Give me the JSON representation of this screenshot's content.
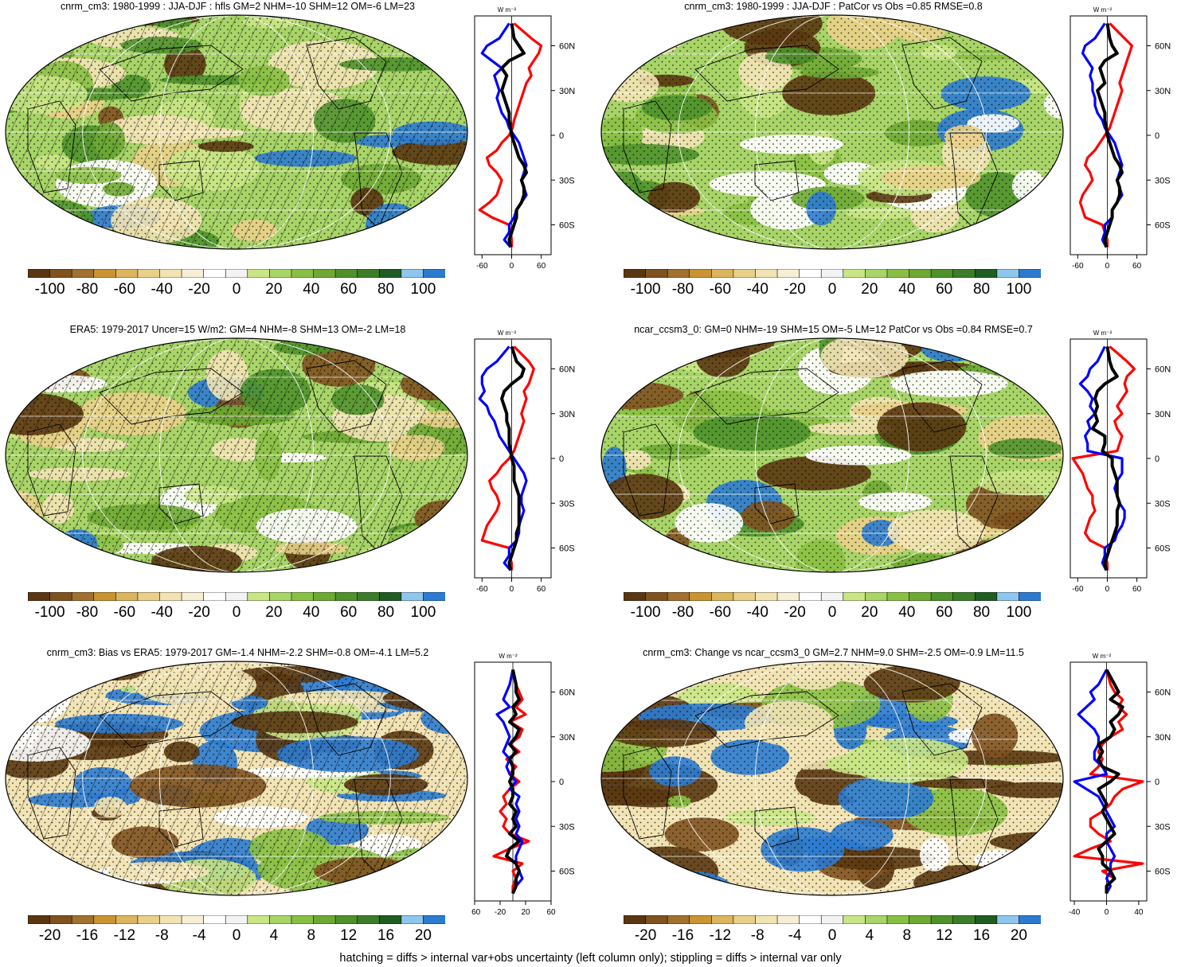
{
  "footer": "hatching = diffs > internal var+obs uncertainty (left column only); stippling = diffs > internal var only",
  "colors": {
    "scale": [
      "#5a3711",
      "#7f5220",
      "#a0712f",
      "#c99431",
      "#dcb55f",
      "#e9d089",
      "#f2e3b4",
      "#f7efd5",
      "#ffffff",
      "#f3f3f3",
      "#c9e585",
      "#a8d468",
      "#89c044",
      "#6ea934",
      "#4f922c",
      "#3c7d29",
      "#1f5d22",
      "#8fc6ee",
      "#2c7bd0"
    ],
    "profile_red": "#ff0000",
    "profile_blue": "#0000ff",
    "profile_black": "#000000"
  },
  "panels": [
    {
      "id": "p1",
      "title": "cnrm_cm3: 1980-1999 : JJA-DJF : hfls GM=2 NHM=-10 SHM=12 OM=-6 LM=23",
      "colorbar_ticks": [
        "-100",
        "-80",
        "-60",
        "-40",
        "-20",
        "0",
        "20",
        "40",
        "60",
        "80",
        "100"
      ],
      "hatched": true,
      "unit": "W m⁻²",
      "lat_labels": [
        "60N",
        "30N",
        "0",
        "30S",
        "60S"
      ],
      "x_ticks": [
        "-60",
        "0",
        "60"
      ],
      "chart_data": {
        "type": "line",
        "title": "cnrm_cm3: 1980-1999 : JJA-DJF : hfls GM=2 NHM=-10 SHM=12 OM=-6 LM=23",
        "ylabel": "",
        "xlabel": "W m-2",
        "xlim": [
          -75,
          80
        ],
        "ylim": [
          -80,
          80
        ],
        "y": [
          75,
          65,
          60,
          55,
          50,
          45,
          40,
          35,
          30,
          25,
          20,
          15,
          10,
          5,
          0,
          -5,
          -10,
          -15,
          -20,
          -25,
          -30,
          -35,
          -40,
          -45,
          -50,
          -55,
          -60,
          -65,
          -70,
          -75
        ],
        "series": [
          {
            "name": "red",
            "values": [
              5,
              40,
              60,
              55,
              45,
              35,
              40,
              30,
              25,
              20,
              15,
              10,
              5,
              2,
              -5,
              -20,
              -30,
              -50,
              -45,
              -30,
              -20,
              -25,
              -30,
              -45,
              -65,
              -40,
              -5,
              -2,
              0,
              0
            ]
          },
          {
            "name": "blue",
            "values": [
              -5,
              -25,
              -50,
              -60,
              -40,
              -20,
              -35,
              -30,
              -25,
              -30,
              -25,
              -20,
              -10,
              -5,
              5,
              15,
              20,
              25,
              30,
              25,
              20,
              25,
              30,
              20,
              10,
              5,
              -5,
              -5,
              -15,
              -2
            ]
          },
          {
            "name": "black",
            "values": [
              0,
              5,
              15,
              25,
              -5,
              -20,
              -10,
              -15,
              -20,
              -15,
              -10,
              -5,
              -5,
              -2,
              0,
              5,
              10,
              15,
              25,
              30,
              20,
              25,
              25,
              20,
              10,
              10,
              5,
              0,
              -5,
              -2
            ]
          }
        ]
      }
    },
    {
      "id": "p2",
      "title": "cnrm_cm3: 1980-1999 : JJA-DJF : PatCor vs Obs =0.85 RMSE=0.8",
      "colorbar_ticks": [
        "-100",
        "-80",
        "-60",
        "-40",
        "-20",
        "0",
        "20",
        "40",
        "60",
        "80",
        "100"
      ],
      "hatched": false,
      "unit": "W m⁻²",
      "lat_labels": [
        "60N",
        "30N",
        "0",
        "30S",
        "60S"
      ],
      "x_ticks": [
        "-60",
        "0",
        "60"
      ],
      "chart_data": {
        "type": "line",
        "title": "cnrm_cm3: 1980-1999 : JJA-DJF : PatCor vs Obs =0.85 RMSE=0.8",
        "ylabel": "",
        "xlabel": "W m-2",
        "xlim": [
          -75,
          80
        ],
        "ylim": [
          -80,
          80
        ],
        "y": [
          75,
          65,
          60,
          55,
          50,
          45,
          40,
          35,
          30,
          25,
          20,
          15,
          10,
          5,
          0,
          -5,
          -10,
          -15,
          -20,
          -25,
          -30,
          -35,
          -40,
          -45,
          -50,
          -55,
          -60,
          -65,
          -70,
          -75
        ],
        "series": [
          {
            "name": "red",
            "values": [
              5,
              35,
              50,
              45,
              40,
              35,
              30,
              25,
              30,
              25,
              20,
              15,
              10,
              5,
              -5,
              -15,
              -25,
              -40,
              -45,
              -35,
              -30,
              -40,
              -50,
              -55,
              -50,
              -45,
              -10,
              -5,
              0,
              0
            ]
          },
          {
            "name": "blue",
            "values": [
              -5,
              -25,
              -45,
              -50,
              -40,
              -30,
              -35,
              -30,
              -30,
              -25,
              -25,
              -20,
              -10,
              -5,
              5,
              15,
              20,
              25,
              30,
              25,
              20,
              25,
              30,
              20,
              10,
              10,
              -5,
              -5,
              -10,
              -2
            ]
          },
          {
            "name": "black",
            "values": [
              0,
              5,
              10,
              20,
              -5,
              -15,
              -10,
              -5,
              -20,
              -15,
              -10,
              -5,
              -5,
              -2,
              0,
              5,
              10,
              15,
              25,
              30,
              20,
              25,
              25,
              20,
              10,
              10,
              5,
              0,
              -5,
              -2
            ]
          }
        ]
      }
    },
    {
      "id": "p3",
      "title": "ERA5: 1979-2017 Uncer=15 W/m2: GM=4 NHM=-8 SHM=13 OM=-2 LM=18",
      "colorbar_ticks": [
        "-100",
        "-80",
        "-60",
        "-40",
        "-20",
        "0",
        "20",
        "40",
        "60",
        "80",
        "100"
      ],
      "hatched": true,
      "unit": "W m⁻²",
      "lat_labels": [
        "60N",
        "30N",
        "0",
        "30S",
        "60S"
      ],
      "x_ticks": [
        "-60",
        "0",
        "60"
      ],
      "chart_data": {
        "type": "line",
        "title": "ERA5: 1979-2017 Uncer=15 W/m2: GM=4 NHM=-8 SHM=13 OM=-2 LM=18",
        "ylabel": "",
        "xlabel": "W m-2",
        "xlim": [
          -75,
          80
        ],
        "ylim": [
          -80,
          80
        ],
        "y": [
          75,
          65,
          60,
          55,
          50,
          45,
          40,
          35,
          30,
          25,
          20,
          15,
          10,
          5,
          0,
          -5,
          -10,
          -15,
          -20,
          -25,
          -30,
          -35,
          -40,
          -45,
          -50,
          -55,
          -60,
          -65,
          -70,
          -75
        ],
        "series": [
          {
            "name": "red",
            "values": [
              5,
              35,
              45,
              40,
              35,
              25,
              30,
              25,
              20,
              25,
              20,
              15,
              10,
              5,
              -5,
              -20,
              -30,
              -45,
              -40,
              -30,
              -25,
              -30,
              -40,
              -50,
              -55,
              -60,
              -5,
              -5,
              0,
              0
            ]
          },
          {
            "name": "blue",
            "values": [
              -5,
              -30,
              -50,
              -60,
              -60,
              -55,
              -65,
              -50,
              -45,
              -35,
              -30,
              -25,
              -15,
              -5,
              5,
              15,
              25,
              30,
              25,
              20,
              20,
              25,
              20,
              15,
              15,
              10,
              -5,
              -5,
              -15,
              -2
            ]
          },
          {
            "name": "black",
            "values": [
              0,
              10,
              25,
              20,
              0,
              -15,
              -20,
              -15,
              -10,
              -10,
              -5,
              -5,
              -5,
              -2,
              0,
              5,
              5,
              5,
              10,
              15,
              15,
              15,
              15,
              15,
              10,
              10,
              5,
              0,
              -5,
              -2
            ]
          }
        ]
      }
    },
    {
      "id": "p4",
      "title": "ncar_ccsm3_0: GM=0 NHM=-19 SHM=15 OM=-5 LM=12 PatCor vs Obs =0.84 RMSE=0.7",
      "colorbar_ticks": [
        "-100",
        "-80",
        "-60",
        "-40",
        "-20",
        "0",
        "20",
        "40",
        "60",
        "80",
        "100"
      ],
      "hatched": false,
      "unit": "W m⁻²",
      "lat_labels": [
        "60N",
        "30N",
        "0",
        "30S",
        "60S"
      ],
      "x_ticks": [
        "-60",
        "0",
        "60"
      ],
      "chart_data": {
        "type": "line",
        "title": "ncar_ccsm3_0: GM=0 NHM=-19 SHM=15 OM=-5 LM=12 PatCor vs Obs =0.84 RMSE=0.7",
        "ylabel": "",
        "xlabel": "W m-2",
        "xlim": [
          -75,
          80
        ],
        "ylim": [
          -80,
          80
        ],
        "y": [
          75,
          65,
          60,
          55,
          50,
          45,
          40,
          35,
          30,
          25,
          20,
          15,
          10,
          5,
          0,
          -5,
          -10,
          -15,
          -20,
          -25,
          -30,
          -35,
          -40,
          -45,
          -50,
          -55,
          -60,
          -65,
          -70,
          -75
        ],
        "series": [
          {
            "name": "red",
            "values": [
              5,
              40,
              55,
              40,
              35,
              40,
              30,
              20,
              30,
              15,
              20,
              30,
              25,
              20,
              -70,
              -60,
              -50,
              -45,
              -40,
              -30,
              -30,
              -25,
              -35,
              -40,
              -45,
              -35,
              -5,
              -5,
              0,
              0
            ]
          },
          {
            "name": "blue",
            "values": [
              -5,
              -20,
              -35,
              -40,
              -55,
              -40,
              -30,
              -35,
              -25,
              -40,
              -35,
              -45,
              -40,
              -40,
              30,
              30,
              30,
              20,
              15,
              20,
              25,
              35,
              35,
              30,
              20,
              15,
              -5,
              -5,
              -10,
              -2
            ]
          },
          {
            "name": "black",
            "values": [
              0,
              5,
              10,
              20,
              -5,
              -20,
              -25,
              -20,
              -25,
              -20,
              -30,
              -5,
              -5,
              -10,
              10,
              10,
              15,
              20,
              20,
              20,
              25,
              20,
              20,
              20,
              15,
              10,
              5,
              0,
              -5,
              -2
            ]
          }
        ]
      }
    },
    {
      "id": "p5",
      "title": "cnrm_cm3: Bias vs ERA5: 1979-2017 GM=-1.4 NHM=-2.2 SHM=-0.8 OM=-4.1 LM=5.2",
      "colorbar_ticks": [
        "-20",
        "-16",
        "-12",
        "-8",
        "-4",
        "0",
        "4",
        "8",
        "12",
        "16",
        "20"
      ],
      "hatched": true,
      "unit": "W m⁻²",
      "lat_labels": [
        "60N",
        "30N",
        "0",
        "30S",
        "60S"
      ],
      "x_ticks": [
        "-60",
        "-20",
        "20",
        "60"
      ],
      "chart_data": {
        "type": "line",
        "title": "cnrm_cm3: Bias vs ERA5: 1979-2017 GM=-1.4 NHM=-2.2 SHM=-0.8 OM=-4.1 LM=5.2",
        "ylabel": "",
        "xlabel": "W m-2",
        "xlim": [
          -60,
          60
        ],
        "ylim": [
          -80,
          80
        ],
        "y": [
          75,
          65,
          60,
          55,
          50,
          45,
          40,
          35,
          30,
          25,
          20,
          15,
          10,
          5,
          0,
          -5,
          -10,
          -15,
          -20,
          -25,
          -30,
          -35,
          -40,
          -45,
          -50,
          -55,
          -60,
          -65,
          -70,
          -75
        ],
        "series": [
          {
            "name": "red",
            "values": [
              0,
              5,
              10,
              15,
              5,
              20,
              -5,
              15,
              10,
              -5,
              10,
              -10,
              5,
              -5,
              10,
              -5,
              -15,
              -10,
              -20,
              -10,
              -15,
              -5,
              25,
              -5,
              -30,
              15,
              0,
              5,
              0,
              0
            ]
          },
          {
            "name": "blue",
            "values": [
              0,
              -5,
              -10,
              -15,
              -5,
              -25,
              -15,
              -10,
              -5,
              -10,
              -15,
              -5,
              -10,
              -5,
              5,
              -5,
              10,
              5,
              10,
              5,
              10,
              5,
              15,
              10,
              5,
              5,
              10,
              15,
              5,
              0
            ]
          },
          {
            "name": "black",
            "values": [
              0,
              5,
              5,
              10,
              0,
              5,
              -5,
              10,
              5,
              -5,
              5,
              -5,
              0,
              0,
              -5,
              0,
              0,
              -5,
              5,
              0,
              5,
              -5,
              10,
              -5,
              -10,
              5,
              10,
              5,
              5,
              0
            ]
          }
        ]
      }
    },
    {
      "id": "p6",
      "title": "cnrm_cm3: Change vs ncar_ccsm3_0 GM=2.7 NHM=9.0 SHM=-2.5 OM=-0.9 LM=11.5",
      "colorbar_ticks": [
        "-20",
        "-16",
        "-12",
        "-8",
        "-4",
        "0",
        "4",
        "8",
        "12",
        "16",
        "20"
      ],
      "hatched": false,
      "unit": "W m⁻²",
      "lat_labels": [
        "60N",
        "30N",
        "0",
        "30S",
        "60S"
      ],
      "x_ticks": [
        "-40",
        "0",
        "40"
      ],
      "chart_data": {
        "type": "line",
        "title": "cnrm_cm3: Change vs ncar_ccsm3_0 GM=2.7 NHM=9.0 SHM=-2.5 OM=-0.9 LM=11.5",
        "ylabel": "",
        "xlabel": "W m-2",
        "xlim": [
          -45,
          50
        ],
        "ylim": [
          -80,
          80
        ],
        "y": [
          75,
          65,
          60,
          55,
          50,
          45,
          40,
          35,
          30,
          25,
          20,
          15,
          10,
          5,
          0,
          -5,
          -10,
          -15,
          -20,
          -25,
          -30,
          -35,
          -40,
          -45,
          -50,
          -55,
          -60,
          -65,
          -70,
          -75
        ],
        "series": [
          {
            "name": "red",
            "values": [
              0,
              5,
              10,
              20,
              15,
              25,
              15,
              20,
              5,
              -5,
              -10,
              -5,
              -10,
              -20,
              45,
              20,
              10,
              5,
              -5,
              -20,
              -20,
              -10,
              5,
              -20,
              -40,
              45,
              -5,
              10,
              0,
              0
            ]
          },
          {
            "name": "blue",
            "values": [
              0,
              -10,
              -20,
              -15,
              -25,
              -35,
              -25,
              -15,
              -10,
              -10,
              -15,
              -15,
              -5,
              0,
              -40,
              -25,
              -10,
              -5,
              0,
              5,
              10,
              0,
              0,
              5,
              10,
              5,
              5,
              0,
              5,
              0
            ]
          },
          {
            "name": "black",
            "values": [
              0,
              10,
              15,
              5,
              20,
              15,
              5,
              10,
              5,
              -10,
              -5,
              -10,
              -5,
              15,
              5,
              -10,
              -5,
              0,
              -5,
              0,
              5,
              10,
              0,
              -10,
              -5,
              -5,
              5,
              10,
              0,
              0
            ]
          }
        ]
      }
    }
  ]
}
